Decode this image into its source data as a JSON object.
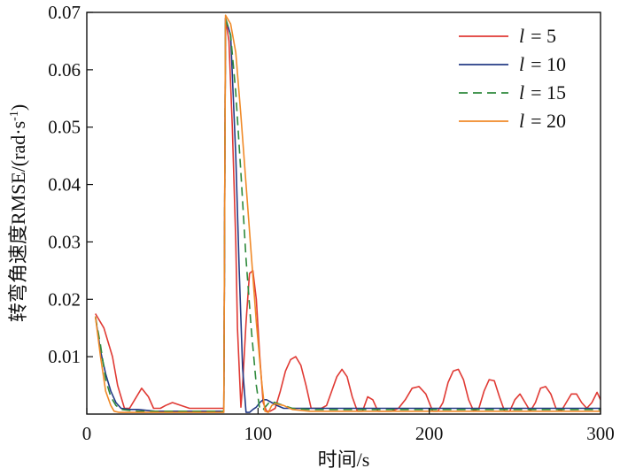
{
  "chart_data": {
    "type": "line",
    "title": "",
    "xlabel": "时间/s",
    "ylabel_main": "转弯角速度RMSE/(rad·s",
    "ylabel_sup": "-1",
    "ylabel_tail": ")",
    "xlim": [
      0,
      300
    ],
    "ylim": [
      0,
      0.07
    ],
    "xticks": [
      0,
      100,
      200,
      300
    ],
    "xtick_labels": [
      "0",
      "100",
      "200",
      "300"
    ],
    "yticks": [
      0.01,
      0.02,
      0.03,
      0.04,
      0.05,
      0.06,
      0.07
    ],
    "ytick_labels": [
      "0.01",
      "0.02",
      "0.03",
      "0.04",
      "0.05",
      "0.06",
      "0.07"
    ],
    "grid": false,
    "legend_position": "top-right",
    "series": [
      {
        "name": "l = 5",
        "legend_var": "l",
        "legend_val": "= 5",
        "color": "#e03a34",
        "dash": "",
        "x": [
          5,
          10,
          15,
          18,
          22,
          25,
          28,
          32,
          36,
          39,
          43,
          46,
          50,
          55,
          60,
          65,
          70,
          75,
          80,
          81,
          83,
          85,
          87,
          88,
          90,
          91,
          93,
          95,
          97,
          99,
          101,
          103,
          105,
          107,
          110,
          113,
          116,
          119,
          122,
          125,
          128,
          131,
          134,
          137,
          140,
          143,
          146,
          149,
          152,
          155,
          158,
          161,
          164,
          167,
          170,
          174,
          178,
          182,
          186,
          190,
          194,
          198,
          202,
          205,
          208,
          211,
          214,
          217,
          220,
          223,
          226,
          229,
          232,
          235,
          238,
          241,
          244,
          247,
          250,
          253,
          256,
          259,
          262,
          265,
          268,
          271,
          274,
          277,
          280,
          283,
          286,
          289,
          292,
          295,
          298,
          300
        ],
        "y": [
          0.0175,
          0.015,
          0.01,
          0.005,
          0.001,
          0.001,
          0.0025,
          0.0045,
          0.003,
          0.001,
          0.001,
          0.0015,
          0.002,
          0.0015,
          0.001,
          0.001,
          0.001,
          0.001,
          0.001,
          0.069,
          0.065,
          0.05,
          0.03,
          0.015,
          0.0012,
          0.005,
          0.016,
          0.0245,
          0.025,
          0.02,
          0.01,
          0.002,
          0.0005,
          0.0005,
          0.001,
          0.004,
          0.0075,
          0.0095,
          0.01,
          0.0085,
          0.005,
          0.001,
          0.001,
          0.001,
          0.0015,
          0.004,
          0.0065,
          0.0078,
          0.0065,
          0.003,
          0.0005,
          0.0005,
          0.003,
          0.0025,
          0.0005,
          0.0005,
          0.0005,
          0.001,
          0.0025,
          0.0045,
          0.0048,
          0.0035,
          0.0005,
          0.0005,
          0.002,
          0.0055,
          0.0075,
          0.0078,
          0.006,
          0.0025,
          0.0005,
          0.001,
          0.004,
          0.006,
          0.0058,
          0.003,
          0.0005,
          0.0005,
          0.0025,
          0.0035,
          0.002,
          0.0005,
          0.002,
          0.0045,
          0.0048,
          0.0035,
          0.001,
          0.0005,
          0.002,
          0.0035,
          0.0035,
          0.002,
          0.001,
          0.002,
          0.0038,
          0.0025
        ]
      },
      {
        "name": "l = 10",
        "legend_var": "l",
        "legend_val": "= 10",
        "color": "#243b86",
        "dash": "",
        "x": [
          5,
          8,
          11,
          14,
          17,
          20,
          25,
          30,
          40,
          50,
          60,
          70,
          80,
          81,
          84,
          87,
          89,
          91,
          93,
          95,
          97,
          99,
          101,
          103,
          105,
          108,
          111,
          115,
          120,
          130,
          140,
          150,
          170,
          200,
          230,
          260,
          300
        ],
        "y": [
          0.017,
          0.011,
          0.007,
          0.004,
          0.002,
          0.001,
          0.0008,
          0.0008,
          0.0005,
          0.0005,
          0.0005,
          0.0005,
          0.0005,
          0.069,
          0.066,
          0.045,
          0.025,
          0.008,
          0.0003,
          0.0003,
          0.0008,
          0.0012,
          0.002,
          0.0025,
          0.0025,
          0.002,
          0.0015,
          0.001,
          0.001,
          0.001,
          0.001,
          0.001,
          0.001,
          0.001,
          0.001,
          0.001,
          0.001
        ]
      },
      {
        "name": "l = 15",
        "legend_var": "l",
        "legend_val": "= 15",
        "color": "#2f8a3c",
        "dash": "10,6",
        "x": [
          5,
          8,
          11,
          14,
          17,
          20,
          30,
          40,
          50,
          60,
          70,
          80,
          81,
          84,
          87,
          90,
          93,
          96,
          99,
          101,
          103,
          105,
          107,
          110,
          115,
          120,
          130,
          140,
          160,
          200,
          250,
          300
        ],
        "y": [
          0.017,
          0.012,
          0.006,
          0.003,
          0.0015,
          0.0008,
          0.0005,
          0.0005,
          0.0005,
          0.0005,
          0.0005,
          0.0005,
          0.069,
          0.066,
          0.056,
          0.042,
          0.027,
          0.015,
          0.005,
          0.0008,
          0.0008,
          0.0015,
          0.0022,
          0.002,
          0.0015,
          0.001,
          0.0008,
          0.0008,
          0.0008,
          0.0008,
          0.0008,
          0.0008
        ]
      },
      {
        "name": "l = 20",
        "legend_var": "l",
        "legend_val": "= 20",
        "color": "#f08a28",
        "dash": "",
        "x": [
          5,
          8,
          11,
          14,
          16,
          19,
          30,
          40,
          50,
          60,
          70,
          80,
          81,
          84,
          87,
          90,
          93,
          96,
          99,
          102,
          104,
          106,
          108,
          110,
          115,
          120,
          130,
          140,
          160,
          200,
          250,
          300
        ],
        "y": [
          0.017,
          0.01,
          0.004,
          0.0015,
          0.0005,
          0.0003,
          0.0003,
          0.0003,
          0.0003,
          0.0003,
          0.0003,
          0.0003,
          0.0695,
          0.068,
          0.063,
          0.052,
          0.04,
          0.028,
          0.016,
          0.006,
          0.0005,
          0.0003,
          0.0015,
          0.0018,
          0.0015,
          0.0008,
          0.0005,
          0.0005,
          0.0005,
          0.0005,
          0.0005,
          0.0005
        ]
      }
    ]
  }
}
